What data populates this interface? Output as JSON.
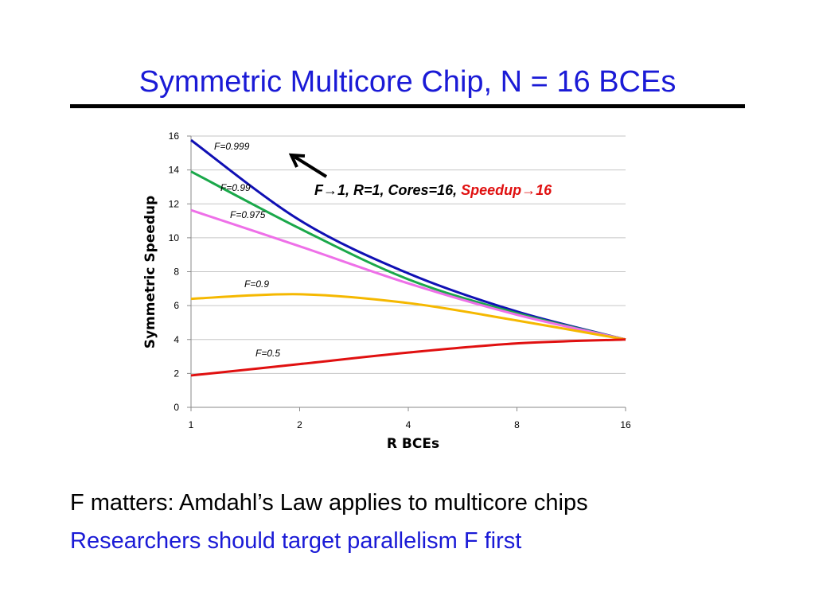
{
  "slide": {
    "title": "Symmetric Multicore Chip, N = 16 BCEs",
    "bullets": [
      "F matters: Amdahl’s Law applies to multicore chips",
      "Researchers should target parallelism F first"
    ],
    "colors": {
      "title": "#1a1ad6",
      "rule": "#000000"
    }
  },
  "chart_data": {
    "type": "line",
    "title": "",
    "xlabel": "R BCEs",
    "ylabel": "Symmetric Speedup",
    "x": [
      1,
      2,
      4,
      8,
      16
    ],
    "x_tick_labels": [
      "1",
      "2",
      "4",
      "8",
      "16"
    ],
    "x_scale": "log2",
    "ylim": [
      0,
      16
    ],
    "y_ticks": [
      0,
      2,
      4,
      6,
      8,
      10,
      12,
      14,
      16
    ],
    "y_tick_labels": [
      "0",
      "2",
      "4",
      "6",
      "8",
      "10",
      "12",
      "14",
      "16"
    ],
    "grid": "horizontal",
    "legend": "none",
    "series": [
      {
        "name": "F=0.999",
        "color": "#1010b4",
        "values": [
          15.76,
          11.04,
          7.9,
          5.65,
          4.0
        ]
      },
      {
        "name": "F=0.99",
        "color": "#1aa84a",
        "values": [
          13.91,
          10.55,
          7.55,
          5.55,
          4.0
        ]
      },
      {
        "name": "F=0.975",
        "color": "#ee70e8",
        "values": [
          11.63,
          9.5,
          7.31,
          5.46,
          4.0
        ]
      },
      {
        "name": "F=0.9",
        "color": "#f5b800",
        "values": [
          6.4,
          6.67,
          6.15,
          5.12,
          4.0
        ]
      },
      {
        "name": "F=0.5",
        "color": "#e01010",
        "values": [
          1.88,
          2.55,
          3.23,
          3.77,
          4.0
        ]
      }
    ],
    "annotation": {
      "text_black": "F→1, R=1, Cores=16, ",
      "text_red": "Speedup→16",
      "color_black": "#000000",
      "color_red": "#e01010",
      "arrow": "arrow-up-left-icon"
    }
  }
}
